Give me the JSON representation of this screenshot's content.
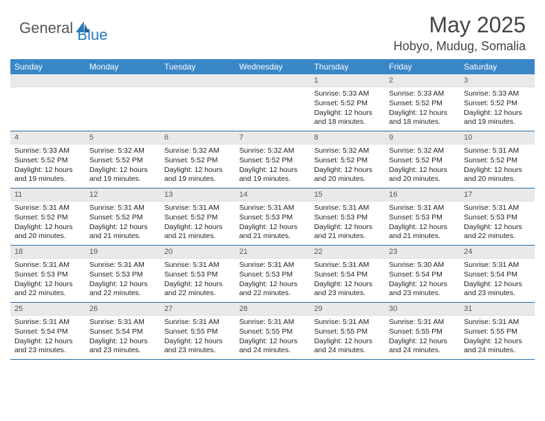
{
  "brand": {
    "part1": "General",
    "part2": "Blue"
  },
  "title": "May 2025",
  "location": "Hobyo, Mudug, Somalia",
  "colors": {
    "header_bg": "#3a87c8",
    "header_text": "#ffffff",
    "row_divider": "#2a6aa0",
    "daynum_bg": "#e9e9e9",
    "body_text": "#222222",
    "title_text": "#444444"
  },
  "weekdays": [
    "Sunday",
    "Monday",
    "Tuesday",
    "Wednesday",
    "Thursday",
    "Friday",
    "Saturday"
  ],
  "weeks": [
    [
      {
        "n": "",
        "empty": true
      },
      {
        "n": "",
        "empty": true
      },
      {
        "n": "",
        "empty": true
      },
      {
        "n": "",
        "empty": true
      },
      {
        "n": "1",
        "sunrise": "Sunrise: 5:33 AM",
        "sunset": "Sunset: 5:52 PM",
        "daylight": "Daylight: 12 hours and 18 minutes."
      },
      {
        "n": "2",
        "sunrise": "Sunrise: 5:33 AM",
        "sunset": "Sunset: 5:52 PM",
        "daylight": "Daylight: 12 hours and 18 minutes."
      },
      {
        "n": "3",
        "sunrise": "Sunrise: 5:33 AM",
        "sunset": "Sunset: 5:52 PM",
        "daylight": "Daylight: 12 hours and 19 minutes."
      }
    ],
    [
      {
        "n": "4",
        "sunrise": "Sunrise: 5:33 AM",
        "sunset": "Sunset: 5:52 PM",
        "daylight": "Daylight: 12 hours and 19 minutes."
      },
      {
        "n": "5",
        "sunrise": "Sunrise: 5:32 AM",
        "sunset": "Sunset: 5:52 PM",
        "daylight": "Daylight: 12 hours and 19 minutes."
      },
      {
        "n": "6",
        "sunrise": "Sunrise: 5:32 AM",
        "sunset": "Sunset: 5:52 PM",
        "daylight": "Daylight: 12 hours and 19 minutes."
      },
      {
        "n": "7",
        "sunrise": "Sunrise: 5:32 AM",
        "sunset": "Sunset: 5:52 PM",
        "daylight": "Daylight: 12 hours and 19 minutes."
      },
      {
        "n": "8",
        "sunrise": "Sunrise: 5:32 AM",
        "sunset": "Sunset: 5:52 PM",
        "daylight": "Daylight: 12 hours and 20 minutes."
      },
      {
        "n": "9",
        "sunrise": "Sunrise: 5:32 AM",
        "sunset": "Sunset: 5:52 PM",
        "daylight": "Daylight: 12 hours and 20 minutes."
      },
      {
        "n": "10",
        "sunrise": "Sunrise: 5:31 AM",
        "sunset": "Sunset: 5:52 PM",
        "daylight": "Daylight: 12 hours and 20 minutes."
      }
    ],
    [
      {
        "n": "11",
        "sunrise": "Sunrise: 5:31 AM",
        "sunset": "Sunset: 5:52 PM",
        "daylight": "Daylight: 12 hours and 20 minutes."
      },
      {
        "n": "12",
        "sunrise": "Sunrise: 5:31 AM",
        "sunset": "Sunset: 5:52 PM",
        "daylight": "Daylight: 12 hours and 21 minutes."
      },
      {
        "n": "13",
        "sunrise": "Sunrise: 5:31 AM",
        "sunset": "Sunset: 5:52 PM",
        "daylight": "Daylight: 12 hours and 21 minutes."
      },
      {
        "n": "14",
        "sunrise": "Sunrise: 5:31 AM",
        "sunset": "Sunset: 5:53 PM",
        "daylight": "Daylight: 12 hours and 21 minutes."
      },
      {
        "n": "15",
        "sunrise": "Sunrise: 5:31 AM",
        "sunset": "Sunset: 5:53 PM",
        "daylight": "Daylight: 12 hours and 21 minutes."
      },
      {
        "n": "16",
        "sunrise": "Sunrise: 5:31 AM",
        "sunset": "Sunset: 5:53 PM",
        "daylight": "Daylight: 12 hours and 21 minutes."
      },
      {
        "n": "17",
        "sunrise": "Sunrise: 5:31 AM",
        "sunset": "Sunset: 5:53 PM",
        "daylight": "Daylight: 12 hours and 22 minutes."
      }
    ],
    [
      {
        "n": "18",
        "sunrise": "Sunrise: 5:31 AM",
        "sunset": "Sunset: 5:53 PM",
        "daylight": "Daylight: 12 hours and 22 minutes."
      },
      {
        "n": "19",
        "sunrise": "Sunrise: 5:31 AM",
        "sunset": "Sunset: 5:53 PM",
        "daylight": "Daylight: 12 hours and 22 minutes."
      },
      {
        "n": "20",
        "sunrise": "Sunrise: 5:31 AM",
        "sunset": "Sunset: 5:53 PM",
        "daylight": "Daylight: 12 hours and 22 minutes."
      },
      {
        "n": "21",
        "sunrise": "Sunrise: 5:31 AM",
        "sunset": "Sunset: 5:53 PM",
        "daylight": "Daylight: 12 hours and 22 minutes."
      },
      {
        "n": "22",
        "sunrise": "Sunrise: 5:31 AM",
        "sunset": "Sunset: 5:54 PM",
        "daylight": "Daylight: 12 hours and 23 minutes."
      },
      {
        "n": "23",
        "sunrise": "Sunrise: 5:30 AM",
        "sunset": "Sunset: 5:54 PM",
        "daylight": "Daylight: 12 hours and 23 minutes."
      },
      {
        "n": "24",
        "sunrise": "Sunrise: 5:31 AM",
        "sunset": "Sunset: 5:54 PM",
        "daylight": "Daylight: 12 hours and 23 minutes."
      }
    ],
    [
      {
        "n": "25",
        "sunrise": "Sunrise: 5:31 AM",
        "sunset": "Sunset: 5:54 PM",
        "daylight": "Daylight: 12 hours and 23 minutes."
      },
      {
        "n": "26",
        "sunrise": "Sunrise: 5:31 AM",
        "sunset": "Sunset: 5:54 PM",
        "daylight": "Daylight: 12 hours and 23 minutes."
      },
      {
        "n": "27",
        "sunrise": "Sunrise: 5:31 AM",
        "sunset": "Sunset: 5:55 PM",
        "daylight": "Daylight: 12 hours and 23 minutes."
      },
      {
        "n": "28",
        "sunrise": "Sunrise: 5:31 AM",
        "sunset": "Sunset: 5:55 PM",
        "daylight": "Daylight: 12 hours and 24 minutes."
      },
      {
        "n": "29",
        "sunrise": "Sunrise: 5:31 AM",
        "sunset": "Sunset: 5:55 PM",
        "daylight": "Daylight: 12 hours and 24 minutes."
      },
      {
        "n": "30",
        "sunrise": "Sunrise: 5:31 AM",
        "sunset": "Sunset: 5:55 PM",
        "daylight": "Daylight: 12 hours and 24 minutes."
      },
      {
        "n": "31",
        "sunrise": "Sunrise: 5:31 AM",
        "sunset": "Sunset: 5:55 PM",
        "daylight": "Daylight: 12 hours and 24 minutes."
      }
    ]
  ]
}
